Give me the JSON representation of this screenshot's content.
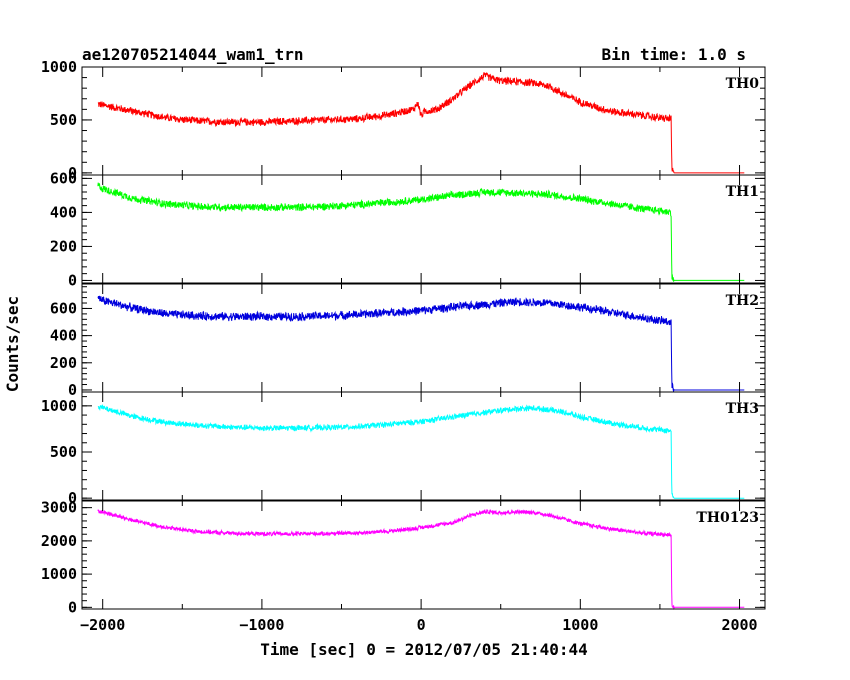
{
  "header": {
    "title": "ae120705214044_wam1_trn",
    "bin_time": "Bin time: 1.0 s"
  },
  "chart_data": {
    "type": "line",
    "xlabel": "Time [sec] 0 = 2012/07/05 21:40:44",
    "ylabel": "Counts/sec",
    "xlim": [
      -2130,
      2160
    ],
    "xticks": [
      -2000,
      -1000,
      0,
      1000,
      2000
    ],
    "xtick_labels": [
      "−2000",
      "−1000",
      "0",
      "1000",
      "2000"
    ],
    "panels": [
      {
        "name": "TH0",
        "color": "#ff0000",
        "ylim": [
          -20,
          1000
        ],
        "yticks": [
          0,
          500,
          1000
        ],
        "ytick_labels": [
          "0",
          "500",
          "1000"
        ],
        "noise": 40,
        "x": [
          -2030,
          -2000,
          -1800,
          -1600,
          -1400,
          -1200,
          -1000,
          -800,
          -600,
          -400,
          -200,
          -50,
          -20,
          0,
          20,
          100,
          200,
          300,
          400,
          450,
          500,
          600,
          700,
          800,
          900,
          1000,
          1100,
          1200,
          1300,
          1400,
          1500,
          1570,
          1575,
          1590,
          2030
        ],
        "y": [
          650,
          640,
          580,
          520,
          490,
          480,
          480,
          490,
          500,
          510,
          550,
          600,
          660,
          540,
          580,
          600,
          700,
          820,
          920,
          890,
          870,
          860,
          850,
          820,
          740,
          670,
          620,
          580,
          560,
          540,
          520,
          510,
          30,
          0,
          0
        ]
      },
      {
        "name": "TH1",
        "color": "#00ff00",
        "ylim": [
          -15,
          620
        ],
        "yticks": [
          0,
          200,
          400,
          600
        ],
        "ytick_labels": [
          "0",
          "200",
          "400",
          "600"
        ],
        "noise": 25,
        "x": [
          -2030,
          -2000,
          -1800,
          -1600,
          -1400,
          -1200,
          -1000,
          -800,
          -600,
          -400,
          -200,
          0,
          200,
          400,
          600,
          800,
          1000,
          1200,
          1400,
          1500,
          1570,
          1575,
          1590,
          2030
        ],
        "y": [
          560,
          540,
          480,
          450,
          435,
          430,
          430,
          430,
          435,
          445,
          460,
          475,
          500,
          520,
          515,
          505,
          480,
          450,
          420,
          410,
          400,
          20,
          0,
          0
        ]
      },
      {
        "name": "TH2",
        "color": "#0000dd",
        "ylim": [
          -15,
          780
        ],
        "yticks": [
          0,
          200,
          400,
          600
        ],
        "ytick_labels": [
          "0",
          "200",
          "400",
          "600"
        ],
        "noise": 35,
        "x": [
          -2030,
          -2000,
          -1800,
          -1600,
          -1400,
          -1200,
          -1000,
          -800,
          -600,
          -400,
          -200,
          0,
          200,
          400,
          600,
          800,
          1000,
          1200,
          1400,
          1500,
          1570,
          1575,
          1590,
          2030
        ],
        "y": [
          680,
          660,
          600,
          560,
          545,
          540,
          540,
          540,
          545,
          555,
          570,
          585,
          610,
          630,
          650,
          640,
          610,
          570,
          530,
          510,
          500,
          25,
          0,
          0
        ]
      },
      {
        "name": "TH3",
        "color": "#00ffff",
        "ylim": [
          -20,
          1150
        ],
        "yticks": [
          0,
          500,
          1000
        ],
        "ytick_labels": [
          "0",
          "500",
          "1000"
        ],
        "noise": 35,
        "x": [
          -2030,
          -2000,
          -1800,
          -1600,
          -1400,
          -1200,
          -1000,
          -800,
          -600,
          -400,
          -200,
          0,
          200,
          400,
          600,
          700,
          800,
          900,
          1000,
          1200,
          1400,
          1500,
          1570,
          1575,
          1590,
          2030
        ],
        "y": [
          1000,
          980,
          880,
          820,
          790,
          770,
          760,
          760,
          765,
          775,
          800,
          830,
          880,
          930,
          970,
          975,
          960,
          930,
          880,
          810,
          760,
          740,
          730,
          30,
          0,
          0
        ]
      },
      {
        "name": "TH0123",
        "color": "#ff00ff",
        "ylim": [
          -50,
          3200
        ],
        "yticks": [
          0,
          1000,
          2000,
          3000
        ],
        "ytick_labels": [
          "0",
          "1000",
          "2000",
          "3000"
        ],
        "noise": 70,
        "x": [
          -2030,
          -2000,
          -1800,
          -1600,
          -1400,
          -1200,
          -1000,
          -800,
          -600,
          -400,
          -200,
          0,
          200,
          300,
          400,
          500,
          600,
          700,
          800,
          900,
          1000,
          1200,
          1400,
          1500,
          1570,
          1575,
          1590,
          2030
        ],
        "y": [
          2900,
          2870,
          2600,
          2400,
          2280,
          2230,
          2210,
          2210,
          2220,
          2240,
          2290,
          2400,
          2550,
          2750,
          2880,
          2850,
          2870,
          2860,
          2780,
          2650,
          2520,
          2350,
          2230,
          2200,
          2180,
          50,
          0,
          0
        ]
      }
    ]
  }
}
